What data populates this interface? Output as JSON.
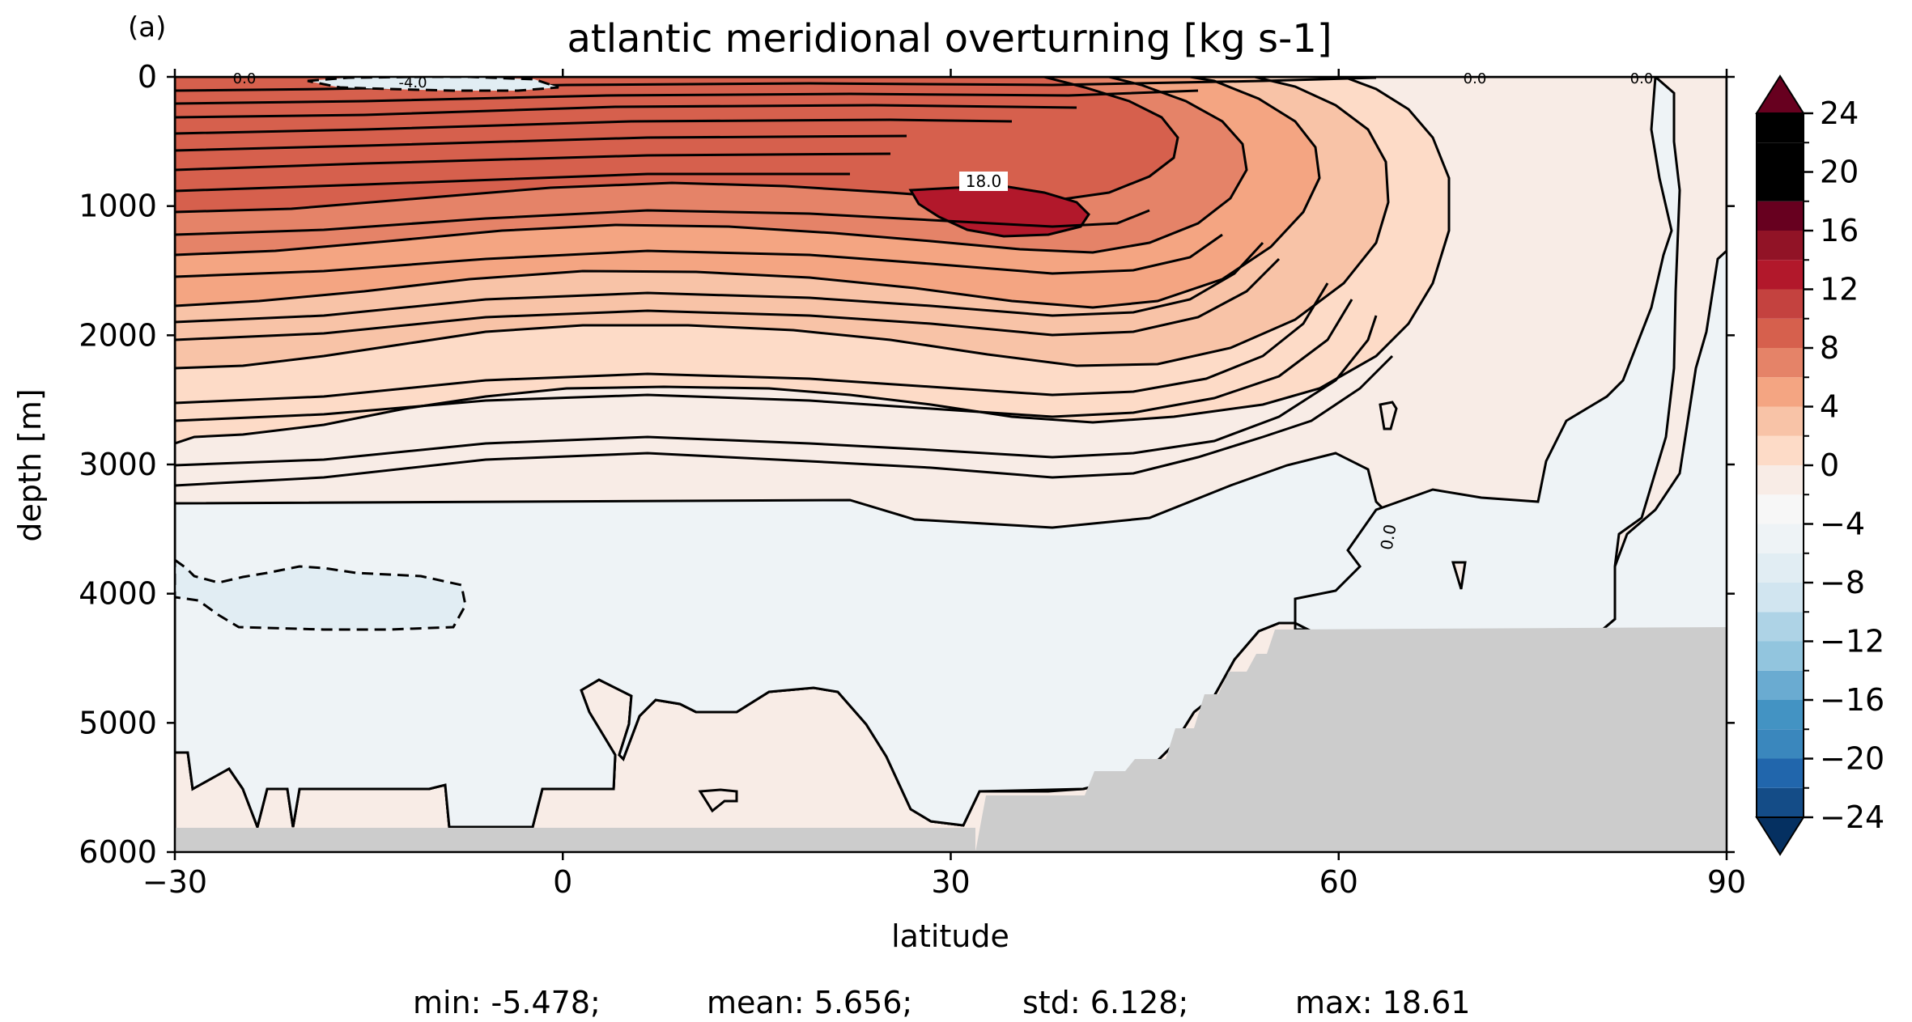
{
  "panel_label": "(a)",
  "chart_data": {
    "type": "heatmap",
    "title": "atlantic meridional overturning [kg s-1]",
    "xlabel": "latitude",
    "ylabel": "depth [m]",
    "xlim": [
      -30,
      90
    ],
    "ylim": [
      6000,
      0
    ],
    "y_inverted": true,
    "x_ticks": [
      -30,
      0,
      30,
      60,
      90
    ],
    "x_tick_labels": [
      "−30",
      "0",
      "30",
      "60",
      "90"
    ],
    "y_ticks": [
      0,
      1000,
      2000,
      3000,
      4000,
      5000,
      6000
    ],
    "y_tick_labels": [
      "0",
      "1000",
      "2000",
      "3000",
      "4000",
      "5000",
      "6000"
    ],
    "colormap": "RdBu_r",
    "colorbar": {
      "ticks": [
        -24,
        -20,
        -16,
        -12,
        -8,
        -4,
        0,
        4,
        8,
        12,
        16,
        20,
        24
      ],
      "tick_labels": [
        "−24",
        "−20",
        "−16",
        "−12",
        "−8",
        "−4",
        "0",
        "4",
        "8",
        "12",
        "16",
        "20",
        "24"
      ],
      "levels_step": 2,
      "extend": "both",
      "colors": [
        "#053061",
        "#144c87",
        "#2166ac",
        "#3a87bd",
        "#4393c3",
        "#6aabd1",
        "#92c5de",
        "#aed3e6",
        "#d1e5f0",
        "#e1edf3",
        "#eef3f6",
        "#f7f7f7",
        "#f8ece6",
        "#fddbc7",
        "#f8c3a7",
        "#f4a582",
        "#e58368",
        "#d6604d",
        "#c4423f",
        "#b2182b",
        "#911326",
        "#67001f"
      ],
      "position": "right"
    },
    "contour_labels": [
      "0.0",
      "-4.0",
      "18.0",
      "0.0",
      "0.0",
      "0.0"
    ],
    "peak_cell": {
      "lat": 34,
      "depth": 1000,
      "value": 18.0
    },
    "topography_color": "#cccccc",
    "grid": false,
    "legend": "none"
  },
  "stats": {
    "min": "min: -5.478;",
    "mean": "mean: 5.656;",
    "std": "std: 6.128;",
    "max": "max: 18.61"
  }
}
